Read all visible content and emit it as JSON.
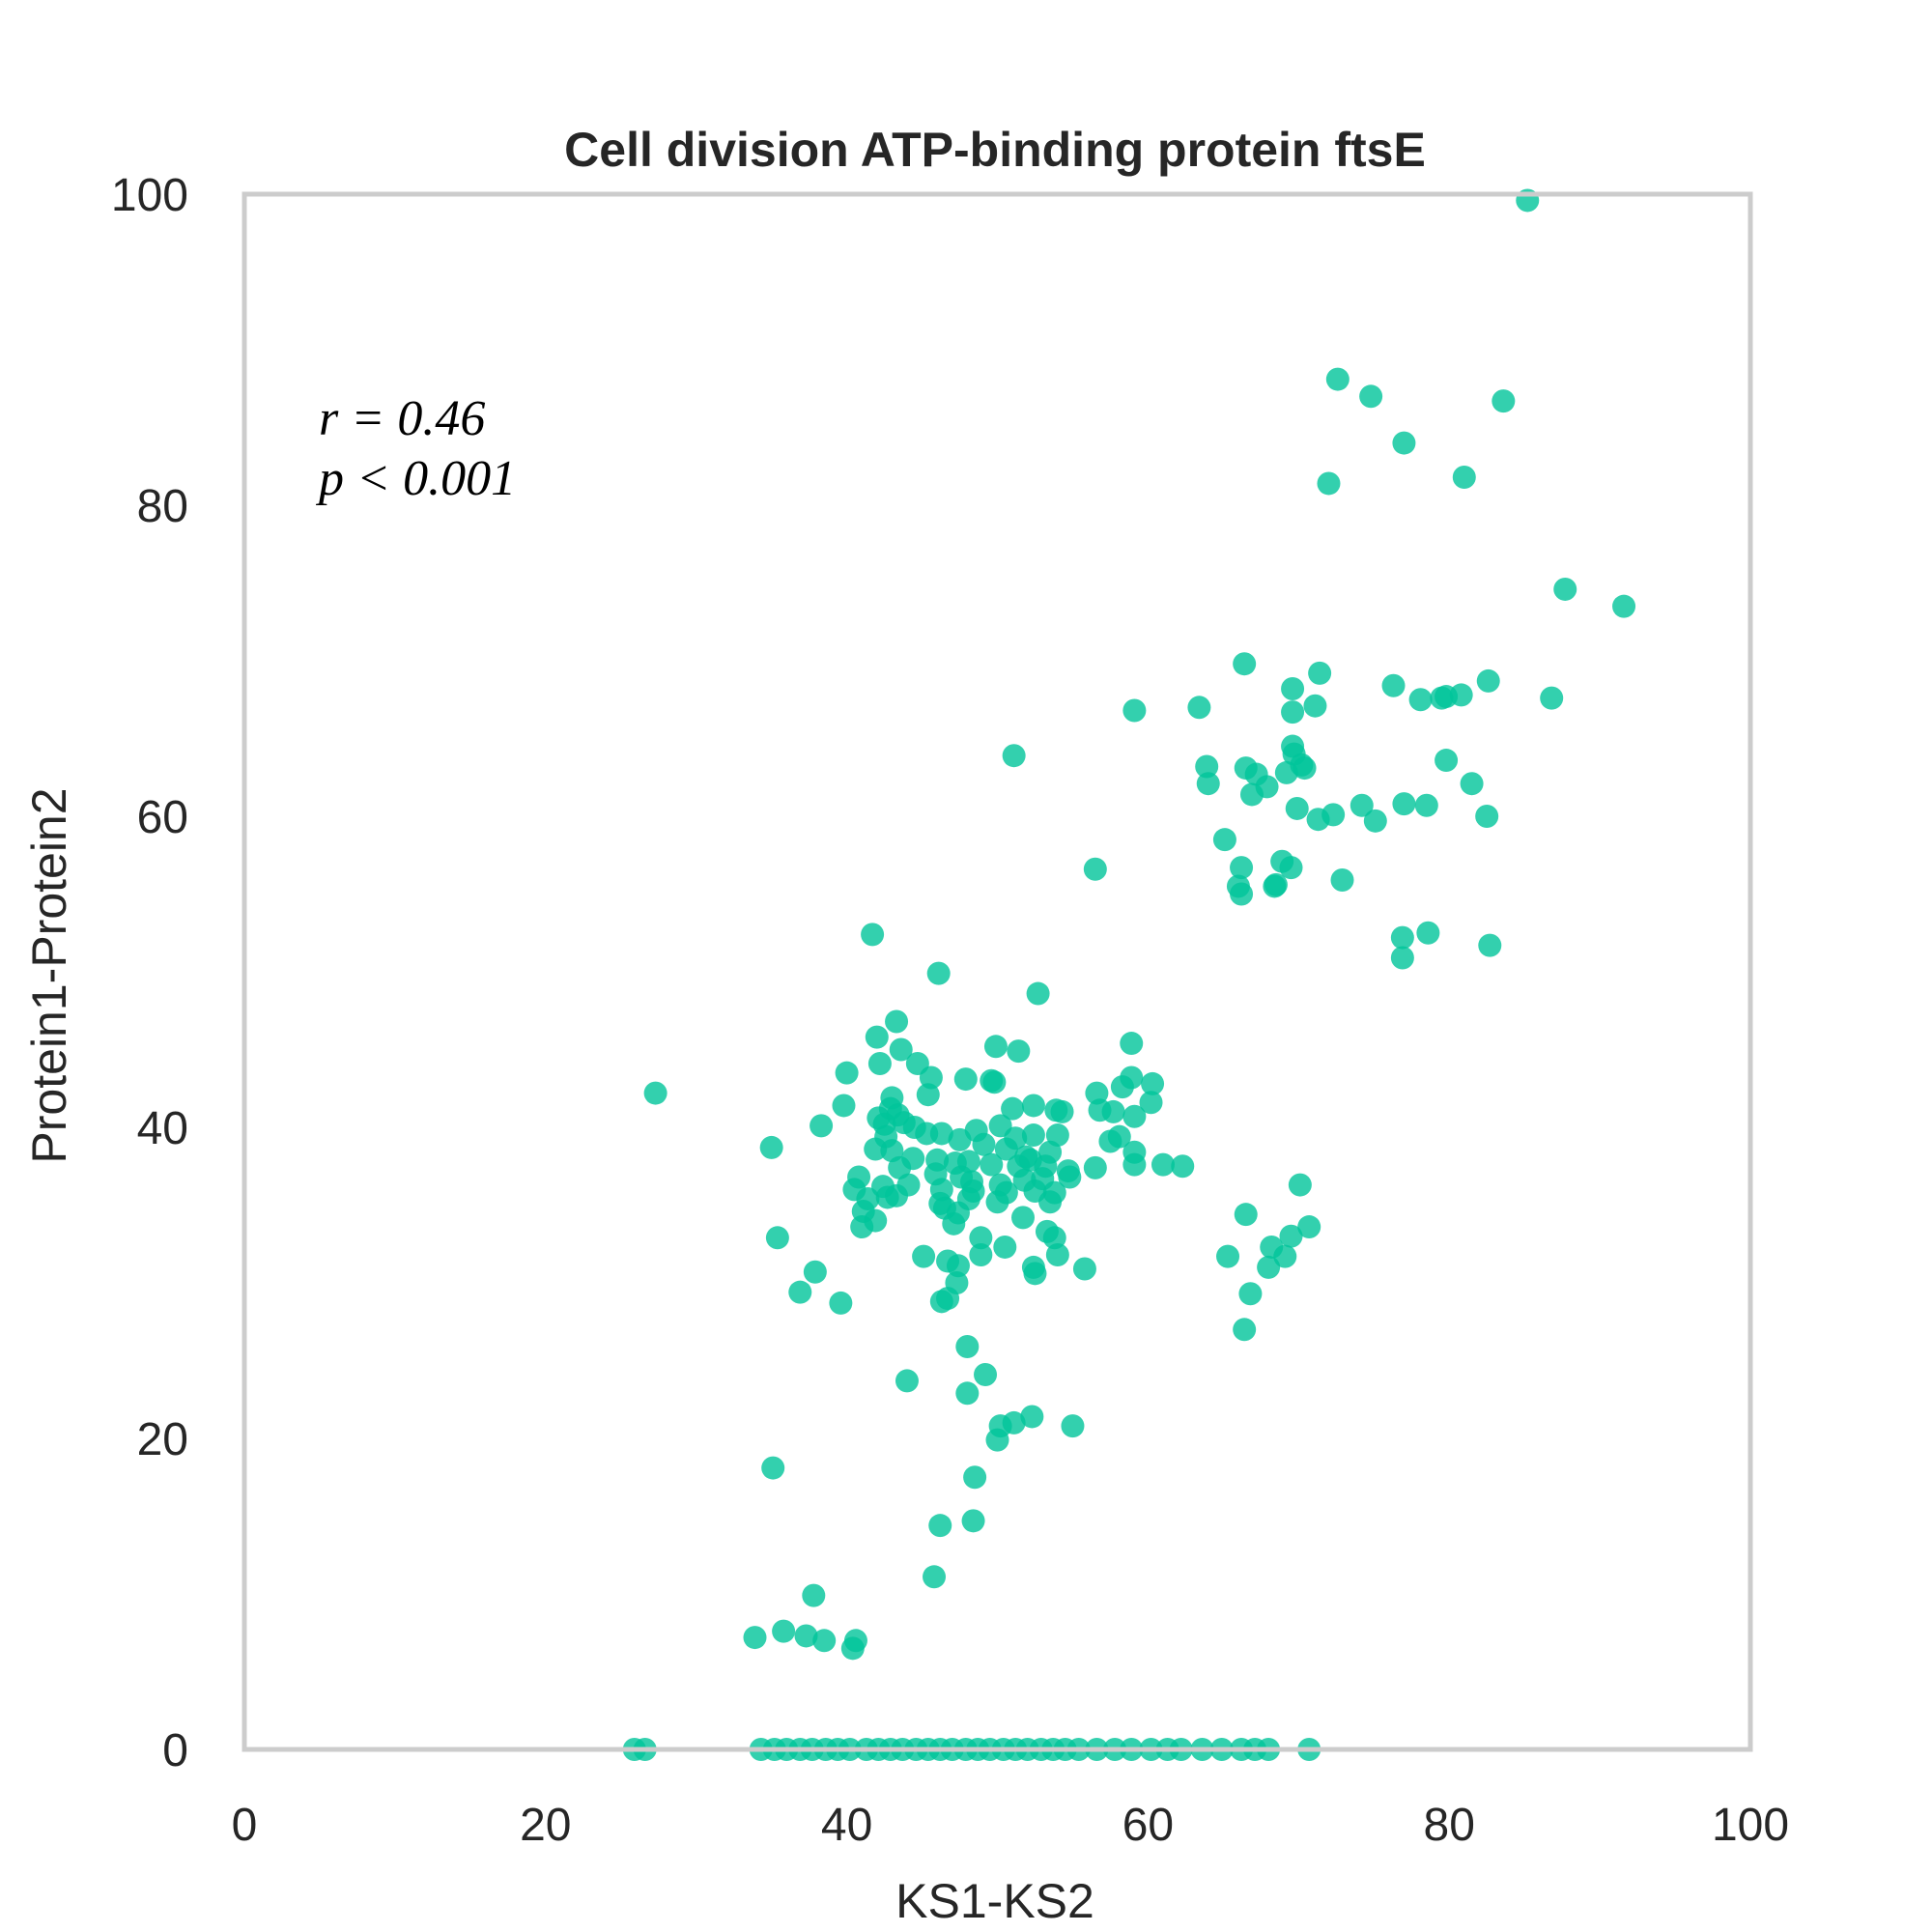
{
  "chart_data": {
    "type": "scatter",
    "title": "Cell division ATP-binding protein ftsE",
    "xlabel": "KS1-KS2",
    "ylabel": "Protein1-Protein2",
    "xlim": [
      0,
      100
    ],
    "ylim": [
      0,
      100
    ],
    "xticks": [
      "0",
      "20",
      "40",
      "60",
      "80",
      "100"
    ],
    "yticks": [
      "0",
      "20",
      "40",
      "60",
      "80",
      "100"
    ],
    "grid": false,
    "annotation": {
      "r_line": "r = 0.46",
      "p_line": "p < 0.001"
    },
    "color": "#00c49a",
    "points": [
      [
        85.2,
        99.6
      ],
      [
        72.6,
        88.1
      ],
      [
        74.8,
        87.0
      ],
      [
        83.6,
        86.7
      ],
      [
        77.0,
        84.0
      ],
      [
        72.0,
        81.4
      ],
      [
        81.0,
        81.8
      ],
      [
        87.7,
        74.6
      ],
      [
        91.6,
        73.5
      ],
      [
        66.4,
        69.8
      ],
      [
        71.4,
        69.2
      ],
      [
        69.6,
        68.2
      ],
      [
        76.3,
        68.4
      ],
      [
        82.6,
        68.7
      ],
      [
        78.1,
        67.5
      ],
      [
        79.5,
        67.6
      ],
      [
        79.8,
        67.7
      ],
      [
        80.8,
        67.8
      ],
      [
        86.8,
        67.6
      ],
      [
        63.4,
        67.0
      ],
      [
        59.1,
        66.8
      ],
      [
        71.1,
        67.1
      ],
      [
        69.6,
        66.7
      ],
      [
        51.1,
        63.9
      ],
      [
        63.9,
        63.2
      ],
      [
        66.5,
        63.1
      ],
      [
        69.6,
        64.5
      ],
      [
        69.7,
        64.0
      ],
      [
        70.2,
        63.3
      ],
      [
        70.4,
        63.1
      ],
      [
        79.8,
        63.6
      ],
      [
        64.0,
        62.1
      ],
      [
        67.2,
        62.7
      ],
      [
        67.9,
        61.9
      ],
      [
        66.9,
        61.4
      ],
      [
        69.9,
        60.5
      ],
      [
        69.2,
        62.8
      ],
      [
        74.2,
        60.7
      ],
      [
        77.0,
        60.8
      ],
      [
        78.5,
        60.7
      ],
      [
        81.5,
        62.1
      ],
      [
        82.5,
        60.0
      ],
      [
        71.3,
        59.8
      ],
      [
        72.3,
        60.1
      ],
      [
        75.1,
        59.7
      ],
      [
        65.1,
        58.5
      ],
      [
        56.5,
        56.6
      ],
      [
        66.2,
        56.7
      ],
      [
        68.9,
        57.1
      ],
      [
        69.5,
        56.7
      ],
      [
        66.0,
        55.5
      ],
      [
        66.2,
        55.0
      ],
      [
        68.4,
        55.5
      ],
      [
        68.5,
        55.6
      ],
      [
        72.9,
        55.9
      ],
      [
        41.7,
        52.4
      ],
      [
        76.9,
        52.2
      ],
      [
        78.6,
        52.5
      ],
      [
        82.7,
        51.7
      ],
      [
        76.9,
        50.9
      ],
      [
        46.1,
        49.9
      ],
      [
        52.7,
        48.6
      ],
      [
        43.3,
        46.8
      ],
      [
        42.0,
        45.8
      ],
      [
        43.6,
        45.0
      ],
      [
        49.9,
        45.2
      ],
      [
        58.9,
        45.4
      ],
      [
        51.4,
        44.9
      ],
      [
        42.2,
        44.1
      ],
      [
        44.7,
        44.1
      ],
      [
        40.0,
        43.5
      ],
      [
        45.6,
        43.2
      ],
      [
        47.9,
        43.1
      ],
      [
        49.6,
        43.0
      ],
      [
        49.8,
        42.9
      ],
      [
        58.9,
        43.2
      ],
      [
        60.3,
        42.8
      ],
      [
        58.3,
        42.6
      ],
      [
        27.3,
        42.2
      ],
      [
        45.4,
        42.1
      ],
      [
        56.6,
        42.2
      ],
      [
        43.0,
        41.9
      ],
      [
        39.8,
        41.4
      ],
      [
        42.9,
        41.2
      ],
      [
        51.0,
        41.2
      ],
      [
        52.4,
        41.4
      ],
      [
        53.9,
        41.1
      ],
      [
        54.3,
        41.0
      ],
      [
        56.8,
        41.1
      ],
      [
        57.7,
        41.0
      ],
      [
        60.2,
        41.6
      ],
      [
        43.4,
        40.8
      ],
      [
        42.1,
        40.6
      ],
      [
        42.5,
        40.2
      ],
      [
        43.8,
        40.3
      ],
      [
        50.2,
        40.1
      ],
      [
        38.3,
        40.1
      ],
      [
        44.5,
        40.0
      ],
      [
        46.3,
        39.6
      ],
      [
        48.6,
        39.8
      ],
      [
        51.2,
        39.3
      ],
      [
        52.4,
        39.5
      ],
      [
        54.0,
        39.5
      ],
      [
        58.1,
        39.4
      ],
      [
        59.1,
        40.7
      ],
      [
        42.6,
        39.4
      ],
      [
        45.3,
        39.6
      ],
      [
        49.1,
        38.9
      ],
      [
        35.0,
        38.7
      ],
      [
        41.9,
        38.6
      ],
      [
        43.0,
        38.5
      ],
      [
        47.5,
        39.2
      ],
      [
        50.6,
        38.6
      ],
      [
        51.9,
        38.1
      ],
      [
        53.5,
        38.4
      ],
      [
        57.5,
        39.1
      ],
      [
        59.1,
        38.4
      ],
      [
        44.4,
        38.0
      ],
      [
        46.0,
        37.9
      ],
      [
        47.2,
        37.7
      ],
      [
        48.1,
        37.8
      ],
      [
        49.6,
        37.6
      ],
      [
        51.4,
        37.5
      ],
      [
        52.2,
        37.9
      ],
      [
        53.2,
        37.5
      ],
      [
        54.7,
        37.2
      ],
      [
        56.5,
        37.4
      ],
      [
        59.1,
        37.6
      ],
      [
        61.0,
        37.6
      ],
      [
        62.3,
        37.5
      ],
      [
        43.5,
        37.4
      ],
      [
        45.9,
        37.0
      ],
      [
        47.6,
        36.8
      ],
      [
        48.3,
        36.5
      ],
      [
        50.2,
        36.3
      ],
      [
        51.8,
        36.6
      ],
      [
        53.0,
        36.7
      ],
      [
        54.8,
        36.8
      ],
      [
        40.8,
        36.8
      ],
      [
        42.4,
        36.2
      ],
      [
        44.1,
        36.3
      ],
      [
        46.3,
        36.0
      ],
      [
        48.4,
        35.9
      ],
      [
        50.6,
        35.8
      ],
      [
        52.5,
        35.9
      ],
      [
        53.8,
        35.8
      ],
      [
        40.5,
        36.0
      ],
      [
        41.4,
        35.4
      ],
      [
        42.7,
        35.5
      ],
      [
        43.3,
        35.6
      ],
      [
        46.2,
        35.1
      ],
      [
        48.1,
        35.4
      ],
      [
        50.0,
        35.2
      ],
      [
        53.5,
        35.2
      ],
      [
        41.1,
        34.6
      ],
      [
        46.5,
        34.8
      ],
      [
        47.4,
        34.5
      ],
      [
        51.7,
        34.2
      ],
      [
        70.1,
        36.3
      ],
      [
        66.5,
        34.4
      ],
      [
        41.9,
        34.0
      ],
      [
        41.0,
        33.6
      ],
      [
        47.1,
        33.8
      ],
      [
        48.9,
        32.9
      ],
      [
        53.3,
        33.3
      ],
      [
        53.8,
        32.9
      ],
      [
        70.7,
        33.6
      ],
      [
        69.5,
        33.0
      ],
      [
        35.4,
        32.9
      ],
      [
        50.5,
        32.3
      ],
      [
        68.2,
        32.3
      ],
      [
        65.3,
        31.7
      ],
      [
        69.1,
        31.7
      ],
      [
        45.1,
        31.7
      ],
      [
        46.7,
        31.4
      ],
      [
        47.4,
        31.1
      ],
      [
        48.9,
        31.8
      ],
      [
        52.4,
        31.0
      ],
      [
        54.0,
        31.8
      ],
      [
        55.8,
        30.9
      ],
      [
        68.0,
        31.0
      ],
      [
        37.9,
        30.7
      ],
      [
        52.5,
        30.6
      ],
      [
        47.3,
        30.0
      ],
      [
        46.7,
        29.0
      ],
      [
        46.3,
        28.8
      ],
      [
        66.8,
        29.3
      ],
      [
        36.9,
        29.4
      ],
      [
        39.6,
        28.7
      ],
      [
        66.4,
        27.0
      ],
      [
        48.0,
        25.9
      ],
      [
        49.2,
        24.1
      ],
      [
        44.0,
        23.7
      ],
      [
        48.0,
        22.9
      ],
      [
        50.2,
        20.8
      ],
      [
        51.1,
        21.0
      ],
      [
        52.3,
        21.4
      ],
      [
        55.0,
        20.8
      ],
      [
        50.0,
        19.9
      ],
      [
        35.1,
        18.1
      ],
      [
        48.5,
        17.5
      ],
      [
        46.2,
        14.4
      ],
      [
        48.4,
        14.7
      ],
      [
        45.8,
        11.1
      ],
      [
        37.8,
        9.9
      ],
      [
        33.9,
        7.2
      ],
      [
        35.8,
        7.6
      ],
      [
        37.3,
        7.3
      ],
      [
        38.5,
        7.0
      ],
      [
        40.6,
        7.0
      ],
      [
        40.4,
        6.5
      ],
      [
        25.9,
        0
      ],
      [
        26.6,
        0
      ],
      [
        34.3,
        0
      ],
      [
        35.2,
        0
      ],
      [
        36.0,
        0
      ],
      [
        36.9,
        0
      ],
      [
        37.7,
        0
      ],
      [
        38.6,
        0
      ],
      [
        39.4,
        0
      ],
      [
        40.2,
        0
      ],
      [
        41.3,
        0
      ],
      [
        42.1,
        0
      ],
      [
        42.9,
        0
      ],
      [
        43.7,
        0
      ],
      [
        44.6,
        0
      ],
      [
        45.4,
        0
      ],
      [
        46.2,
        0
      ],
      [
        47.0,
        0
      ],
      [
        47.9,
        0
      ],
      [
        48.7,
        0
      ],
      [
        49.5,
        0
      ],
      [
        50.4,
        0
      ],
      [
        51.2,
        0
      ],
      [
        52.0,
        0
      ],
      [
        52.9,
        0
      ],
      [
        53.7,
        0
      ],
      [
        54.5,
        0
      ],
      [
        55.4,
        0
      ],
      [
        56.6,
        0
      ],
      [
        57.8,
        0
      ],
      [
        58.9,
        0
      ],
      [
        60.2,
        0
      ],
      [
        61.3,
        0
      ],
      [
        62.2,
        0
      ],
      [
        63.6,
        0
      ],
      [
        64.9,
        0
      ],
      [
        66.2,
        0
      ],
      [
        67.1,
        0
      ],
      [
        68.0,
        0
      ],
      [
        70.7,
        0
      ]
    ]
  }
}
